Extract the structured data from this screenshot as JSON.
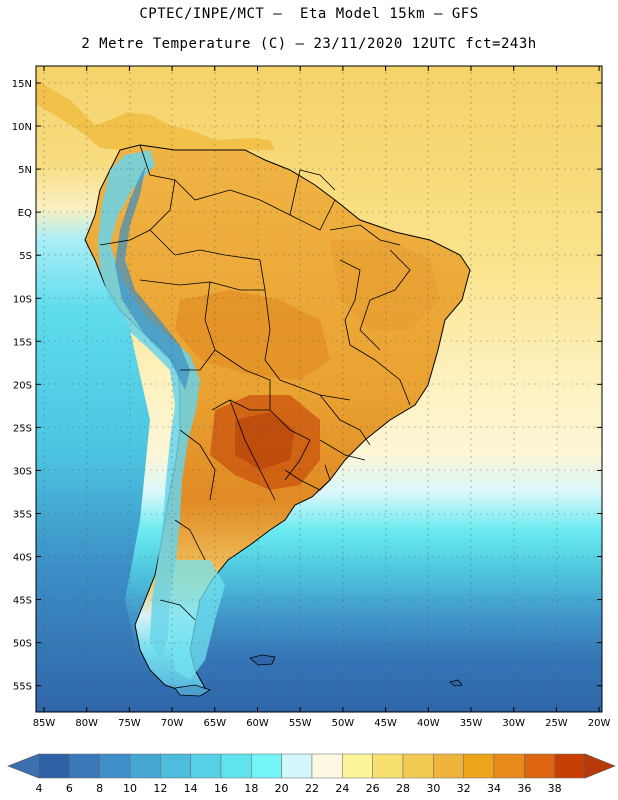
{
  "header": {
    "line1": "CPTEC/INPE/MCT –  Eta Model 15km – GFS",
    "line2": "2 Metre Temperature (C) – 23/11/2020 12UTC fct=243h"
  },
  "axes": {
    "lat_labels": [
      "15N",
      "10N",
      "5N",
      "EQ",
      "5S",
      "10S",
      "15S",
      "20S",
      "25S",
      "30S",
      "35S",
      "40S",
      "45S",
      "50S",
      "55S"
    ],
    "lon_labels": [
      "85W",
      "80W",
      "75W",
      "70W",
      "65W",
      "60W",
      "55W",
      "50W",
      "45W",
      "40W",
      "35W",
      "30W",
      "25W",
      "20W"
    ]
  },
  "colorbar": {
    "labels": [
      "4",
      "6",
      "8",
      "10",
      "12",
      "14",
      "16",
      "18",
      "20",
      "22",
      "24",
      "26",
      "28",
      "30",
      "32",
      "34",
      "36",
      "38"
    ],
    "colors": [
      "#2d62a6",
      "#3a78b8",
      "#3f8fc8",
      "#45a6d2",
      "#4ebcdd",
      "#55d0e6",
      "#5fe3ec",
      "#74f5f8",
      "#d4f7fb",
      "#fff9e4",
      "#fdf59a",
      "#f8e070",
      "#f3cb52",
      "#eeb43c",
      "#eea41a",
      "#e98a1c",
      "#dd6511",
      "#c83f06"
    ],
    "left_arrow_color": "#3b6fb0",
    "right_arrow_color": "#b83a08"
  }
}
